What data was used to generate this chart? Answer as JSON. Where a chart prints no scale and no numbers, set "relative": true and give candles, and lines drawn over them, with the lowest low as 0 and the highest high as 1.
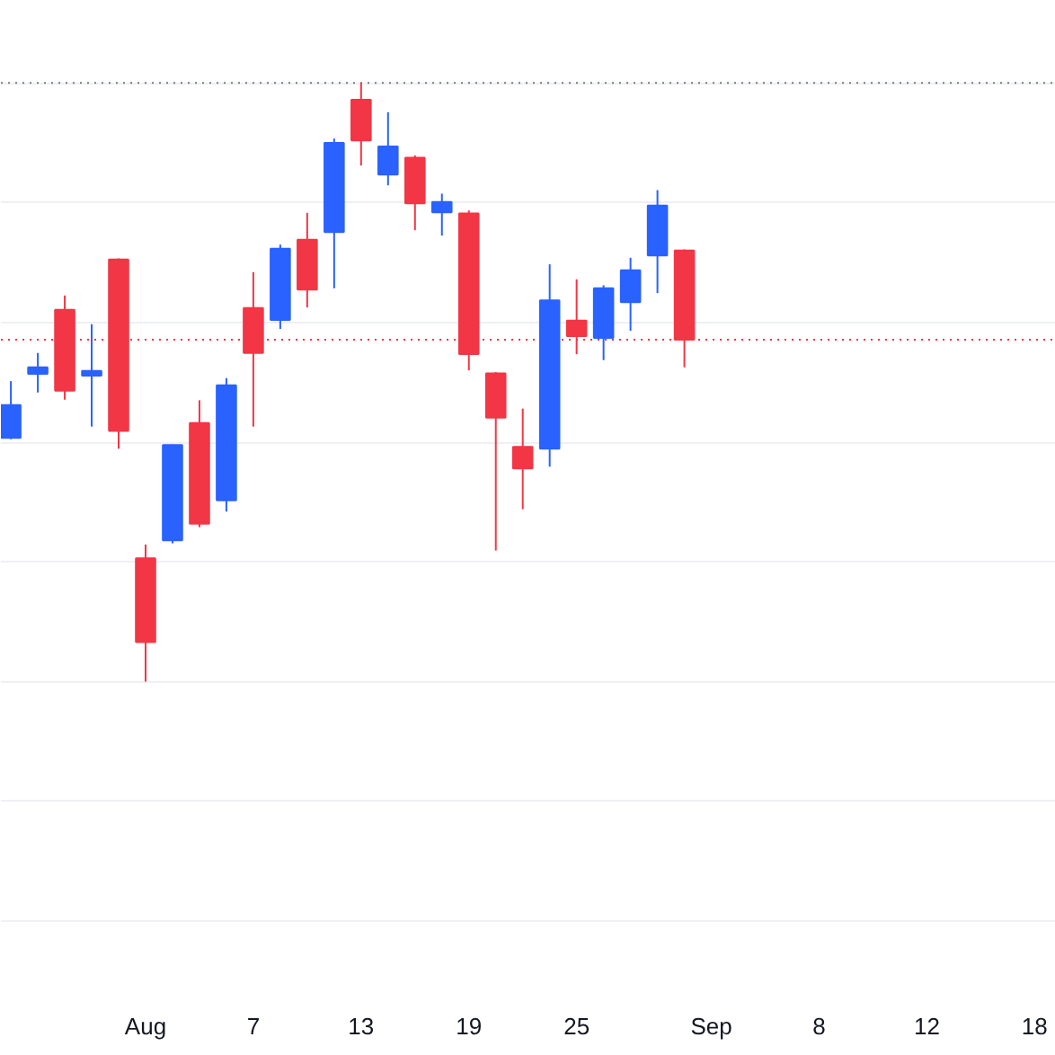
{
  "chart_data": {
    "type": "candlestick",
    "relative": true,
    "categories": [
      null,
      null,
      null,
      null,
      null,
      "Aug",
      null,
      null,
      null,
      "7",
      null,
      null,
      null,
      "13",
      null,
      null,
      null,
      "19",
      null,
      null,
      null,
      "25",
      null,
      null,
      null,
      null,
      "Sep",
      null,
      null,
      null,
      "8",
      null,
      null,
      null,
      "12",
      null,
      null,
      null,
      "18"
    ],
    "ohlc": [
      [
        0.407,
        0.502,
        0.405,
        0.462
      ],
      [
        0.514,
        0.549,
        0.483,
        0.525
      ],
      [
        0.621,
        0.645,
        0.471,
        0.486
      ],
      [
        0.511,
        0.597,
        0.426,
        0.519
      ],
      [
        0.705,
        0.707,
        0.389,
        0.419
      ],
      [
        0.206,
        0.229,
        0.0,
        0.066
      ],
      [
        0.236,
        0.396,
        0.231,
        0.395
      ],
      [
        0.432,
        0.47,
        0.258,
        0.264
      ],
      [
        0.303,
        0.507,
        0.284,
        0.495
      ],
      [
        0.624,
        0.684,
        0.426,
        0.549
      ],
      [
        0.604,
        0.73,
        0.589,
        0.723
      ],
      [
        0.738,
        0.783,
        0.625,
        0.655
      ],
      [
        0.751,
        0.907,
        0.657,
        0.9
      ],
      [
        0.972,
        1.0,
        0.862,
        0.904
      ],
      [
        0.847,
        0.951,
        0.829,
        0.894
      ],
      [
        0.875,
        0.879,
        0.754,
        0.799
      ],
      [
        0.784,
        0.815,
        0.745,
        0.801
      ],
      [
        0.782,
        0.787,
        0.52,
        0.547
      ],
      [
        0.515,
        0.517,
        0.219,
        0.441
      ],
      [
        0.392,
        0.456,
        0.288,
        0.356
      ],
      [
        0.389,
        0.697,
        0.359,
        0.637
      ],
      [
        0.603,
        0.672,
        0.547,
        0.577
      ],
      [
        0.574,
        0.662,
        0.537,
        0.657
      ],
      [
        0.634,
        0.708,
        0.586,
        0.687
      ],
      [
        0.712,
        0.821,
        0.649,
        0.795
      ],
      [
        0.72,
        0.722,
        0.525,
        0.571
      ],
      null,
      null,
      null,
      null,
      null,
      null,
      null,
      null,
      null,
      null,
      null,
      null,
      null
    ],
    "colors": [
      "#2962ff",
      "#2962ff",
      "#f23645",
      "#2962ff",
      "#f23645",
      "#f23645",
      "#2962ff",
      "#f23645",
      "#2962ff",
      "#f23645",
      "#2962ff",
      "#f23645",
      "#2962ff",
      "#f23645",
      "#2962ff",
      "#f23645",
      "#2962ff",
      "#f23645",
      "#f23645",
      "#f23645",
      "#2962ff",
      "#f23645",
      "#2962ff",
      "#2962ff",
      "#2962ff",
      "#f23645",
      null,
      null,
      null,
      null,
      null,
      null,
      null,
      null,
      null,
      null,
      null,
      null,
      null
    ],
    "tick_labels": "x",
    "grid": "y",
    "ref_lines": [
      {
        "axis": "y",
        "value": 1.0,
        "color": "#787b86",
        "line_style": "dotted"
      },
      {
        "axis": "y",
        "value": 0.571,
        "color": "#f23645",
        "line_style": "dotted"
      }
    ]
  }
}
